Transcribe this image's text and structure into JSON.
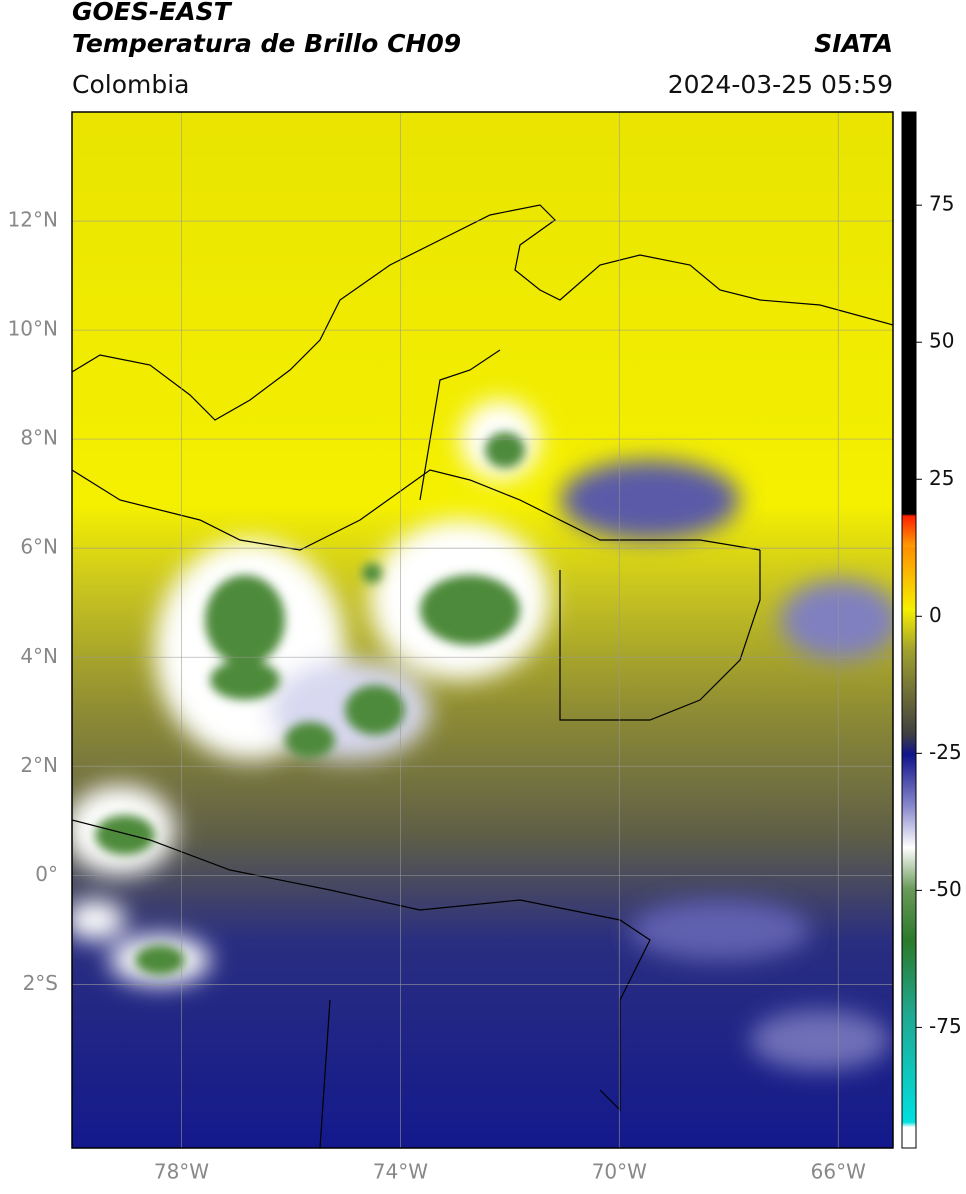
{
  "header": {
    "title": "GOES-EAST",
    "subtitle": "Temperatura de Brillo CH09",
    "source": "SIATA",
    "region": "Colombia",
    "datetime": "2024-03-25 05:59"
  },
  "map": {
    "lonlim": [
      -80,
      -65
    ],
    "latlim": [
      -5,
      14
    ],
    "xticks": [
      {
        "value": -78,
        "label": "78°W"
      },
      {
        "value": -74,
        "label": "74°W"
      },
      {
        "value": -70,
        "label": "70°W"
      },
      {
        "value": -66,
        "label": "66°W"
      }
    ],
    "yticks": [
      {
        "value": 12,
        "label": "12°N"
      },
      {
        "value": 10,
        "label": "10°N"
      },
      {
        "value": 8,
        "label": "8°N"
      },
      {
        "value": 6,
        "label": "6°N"
      },
      {
        "value": 4,
        "label": "4°N"
      },
      {
        "value": 2,
        "label": "2°N"
      },
      {
        "value": 0,
        "label": "0°"
      },
      {
        "value": -2,
        "label": "2°S"
      }
    ]
  },
  "colorbar": {
    "lim": [
      -97,
      92
    ],
    "ticks": [
      75,
      50,
      25,
      0,
      -25,
      -50,
      -75
    ]
  }
}
